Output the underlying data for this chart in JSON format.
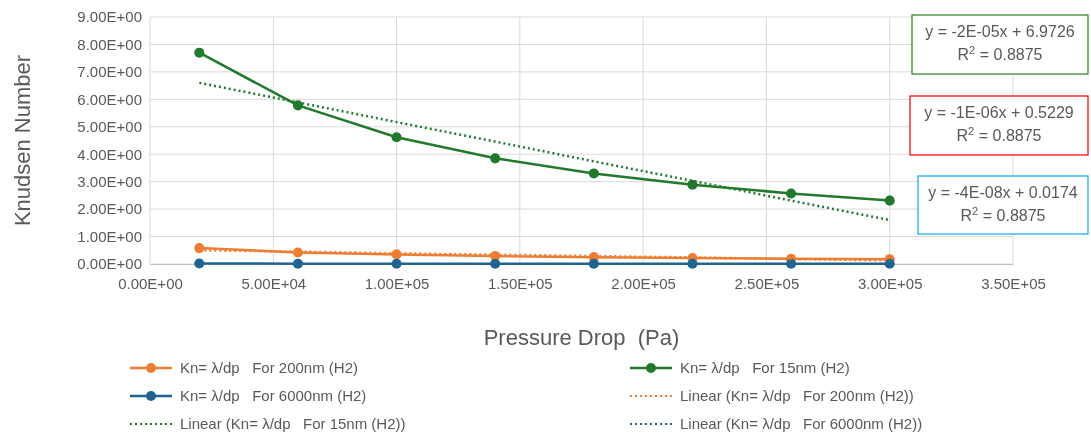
{
  "chart_data": {
    "type": "line",
    "xlabel": "Pressure Drop  (Pa)",
    "ylabel": "Knudsen Number",
    "x": [
      20000,
      60000,
      100000,
      140000,
      180000,
      220000,
      260000,
      300000
    ],
    "series": [
      {
        "name": "Kn= λ/dp   For 200nm (H2)",
        "color": "#ed7d31",
        "values": [
          0.58,
          0.42,
          0.35,
          0.29,
          0.25,
          0.22,
          0.19,
          0.17
        ]
      },
      {
        "name": "Kn= λ/dp   For 15nm (H2)",
        "color": "#217a2c",
        "values": [
          7.7,
          5.78,
          4.62,
          3.85,
          3.3,
          2.89,
          2.57,
          2.31
        ]
      },
      {
        "name": "Kn= λ/dp   For 6000nm (H2)",
        "color": "#1f6391",
        "values": [
          0.02,
          0.01,
          0.01,
          0.01,
          0.01,
          0.01,
          0.01,
          0.01
        ]
      },
      {
        "name": "Linear (Kn= λ/dp   For 200nm (H2))",
        "color": "#ed7d31",
        "type": "line",
        "line_style": "dotted",
        "marker": "none",
        "values": [
          0.5,
          0.45,
          0.39,
          0.34,
          0.29,
          0.24,
          0.18,
          0.13
        ]
      },
      {
        "name": "Linear (Kn= λ/dp   For 15nm (H2))",
        "color": "#217a2c",
        "type": "line",
        "line_style": "dotted",
        "marker": "none",
        "values": [
          6.6,
          5.89,
          5.17,
          4.46,
          3.74,
          3.03,
          2.31,
          1.6
        ]
      },
      {
        "name": "Linear (Kn= λ/dp   For 6000nm (H2))",
        "color": "#1f6391",
        "type": "line",
        "line_style": "dotted",
        "marker": "none",
        "values": [
          null,
          null,
          null,
          null,
          null,
          null,
          null,
          null
        ]
      }
    ],
    "xlim": [
      0,
      350000
    ],
    "ylim": [
      0,
      9
    ],
    "xticks": [
      {
        "value": 0,
        "label": "0.00E+00"
      },
      {
        "value": 50000,
        "label": "5.00E+04"
      },
      {
        "value": 100000,
        "label": "1.00E+05"
      },
      {
        "value": 150000,
        "label": "1.50E+05"
      },
      {
        "value": 200000,
        "label": "2.00E+05"
      },
      {
        "value": 250000,
        "label": "2.50E+05"
      },
      {
        "value": 300000,
        "label": "3.00E+05"
      },
      {
        "value": 350000,
        "label": "3.50E+05"
      }
    ],
    "yticks": [
      {
        "value": 0,
        "label": "0.00E+00"
      },
      {
        "value": 1,
        "label": "1.00E+00"
      },
      {
        "value": 2,
        "label": "2.00E+00"
      },
      {
        "value": 3,
        "label": "3.00E+00"
      },
      {
        "value": 4,
        "label": "4.00E+00"
      },
      {
        "value": 5,
        "label": "5.00E+00"
      },
      {
        "value": 6,
        "label": "6.00E+00"
      },
      {
        "value": 7,
        "label": "7.00E+00"
      },
      {
        "value": 8,
        "label": "8.00E+00"
      },
      {
        "value": 9,
        "label": "9.00E+00"
      }
    ],
    "grid": true,
    "legend": "bottom",
    "marker": "circle",
    "line_style": "solid",
    "annotations": [
      "y = -2E-05x + 6.9726\nR$^{2}$ = 0.8875",
      "y = -1E-06x + 0.5229\nR$^{2}$ = 0.8875",
      "y = -4E-08x + 0.0174\nR$^{2}$ = 0.8875"
    ]
  }
}
